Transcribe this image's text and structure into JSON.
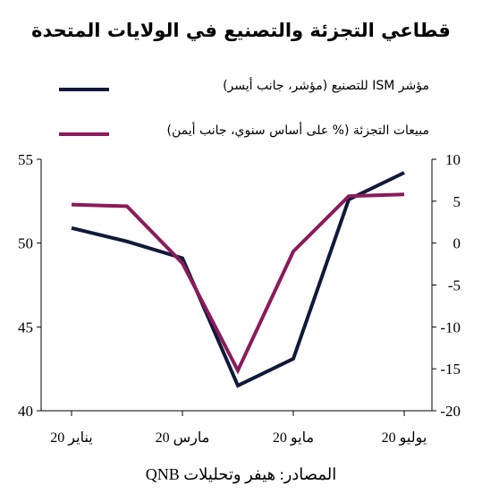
{
  "chart_data": {
    "type": "line",
    "title": "قطاعي التجزئة والتصنيع في الولايات المتحدة",
    "categories": [
      "يناير 20",
      "مارس 20",
      "مايو 20",
      "يوليو 20"
    ],
    "x": [
      "2020-01",
      "2020-02",
      "2020-03",
      "2020-04",
      "2020-05",
      "2020-06",
      "2020-07"
    ],
    "y_left": {
      "ylim": [
        40,
        55
      ],
      "ticks": [
        40,
        45,
        50,
        55
      ]
    },
    "y_right": {
      "ylim": [
        -20,
        10
      ],
      "ticks": [
        -20,
        -15,
        -10,
        -5,
        0,
        5,
        10
      ]
    },
    "series": [
      {
        "name": "مؤشر ISM للتصنيع (مؤشر، جانب أيسر)",
        "axis": "left",
        "color": "#0f1a3a",
        "values": [
          50.9,
          50.1,
          49.1,
          41.5,
          43.1,
          52.6,
          54.2
        ]
      },
      {
        "name": "مبيعات التجزئة (% على أساس سنوي، جانب أيمن)",
        "axis": "right",
        "color": "#8b1a5c",
        "values": [
          4.6,
          4.4,
          -2.4,
          -15.2,
          -1.0,
          5.6,
          5.8
        ]
      }
    ],
    "grid": false,
    "legend_position": "top"
  },
  "source": "المصادر: هيفر وتحليلات QNB"
}
